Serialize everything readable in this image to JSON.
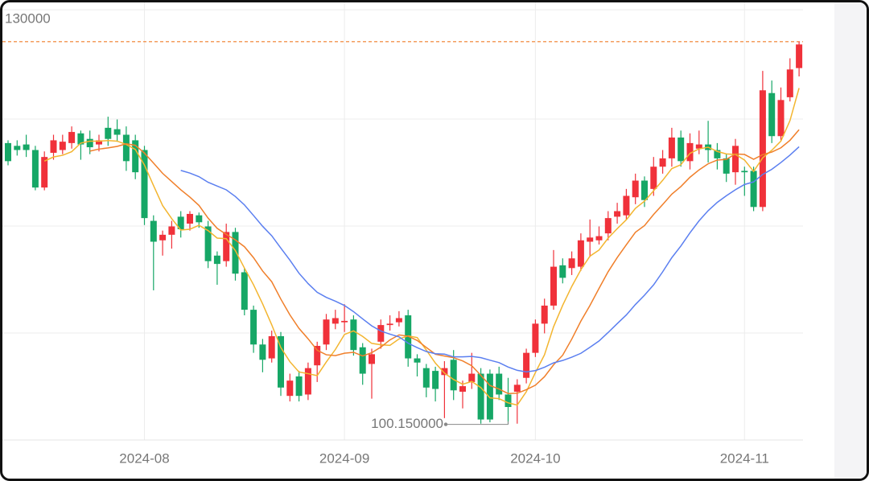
{
  "chart_data": {
    "type": "candlestick",
    "categories": [
      null,
      null,
      null,
      null,
      null,
      null,
      null,
      null,
      null,
      null,
      null,
      null,
      null,
      null,
      null,
      "2024-08",
      null,
      null,
      null,
      null,
      null,
      null,
      null,
      null,
      null,
      null,
      null,
      null,
      null,
      null,
      null,
      null,
      null,
      null,
      null,
      null,
      null,
      "2024-09",
      null,
      null,
      null,
      null,
      null,
      null,
      null,
      null,
      null,
      null,
      null,
      null,
      null,
      null,
      null,
      null,
      null,
      null,
      null,
      null,
      "2024-10",
      null,
      null,
      null,
      null,
      null,
      null,
      null,
      null,
      null,
      null,
      null,
      null,
      null,
      null,
      null,
      null,
      null,
      null,
      null,
      null,
      null,
      null,
      "2024-11",
      null,
      null,
      null,
      null,
      null,
      null
    ],
    "open": [
      120.4,
      120.2,
      120.3,
      119.9,
      117.2,
      119.7,
      119.9,
      120.4,
      121.1,
      120.7,
      120.3,
      121.5,
      121.4,
      121.0,
      120.6,
      119.9,
      114.8,
      113.4,
      113.8,
      115.1,
      114.6,
      115.2,
      114.4,
      112.3,
      111.9,
      114.0,
      111.1,
      108.4,
      105.9,
      104.9,
      106.5,
      102.2,
      103.6,
      102.3,
      104.4,
      105.9,
      107.4,
      107.5,
      107.7,
      105.7,
      104.5,
      106.1,
      107.3,
      107.5,
      108.0,
      104.9,
      104.2,
      104.0,
      103.7,
      104.8,
      102.5,
      103.2,
      103.8,
      103.8,
      103.8,
      102.3,
      102.5,
      103.5,
      105.3,
      107.4,
      108.7,
      111.6,
      111.4,
      111.5,
      113.3,
      113.4,
      113.9,
      115.1,
      115.2,
      116.5,
      117.7,
      117.1,
      118.7,
      119.3,
      120.8,
      119.1,
      120.0,
      120.3,
      119.9,
      119.3,
      118.3,
      118.4,
      118.4,
      115.8,
      124.0,
      120.9,
      123.7,
      125.8
    ],
    "close": [
      119.1,
      119.9,
      119.9,
      117.2,
      119.4,
      120.6,
      120.5,
      121.2,
      120.3,
      120.1,
      120.6,
      120.7,
      121.0,
      119.1,
      118.3,
      115.0,
      113.3,
      113.8,
      114.4,
      114.2,
      115.3,
      114.7,
      111.9,
      111.7,
      114.0,
      111.0,
      108.4,
      105.9,
      104.8,
      106.5,
      102.8,
      103.3,
      102.2,
      104.2,
      105.8,
      107.7,
      107.8,
      107.6,
      105.5,
      103.8,
      105.2,
      107.3,
      107.4,
      107.8,
      104.9,
      104.6,
      102.8,
      102.7,
      104.2,
      102.6,
      102.9,
      103.8,
      100.5,
      100.5,
      102.3,
      101.4,
      103.0,
      105.3,
      107.4,
      108.7,
      111.5,
      110.7,
      112.1,
      113.4,
      113.6,
      113.7,
      115.0,
      115.5,
      116.6,
      117.7,
      116.3,
      118.7,
      119.3,
      120.8,
      119.1,
      120.4,
      120.3,
      119.9,
      119.3,
      118.2,
      120.2,
      118.3,
      115.8,
      124.2,
      120.9,
      123.5,
      125.7,
      127.5
    ],
    "low": [
      118.8,
      119.5,
      119.4,
      117.0,
      117.0,
      119.2,
      119.6,
      120.0,
      119.2,
      119.6,
      119.8,
      120.2,
      120.5,
      118.4,
      117.8,
      114.5,
      109.8,
      112.3,
      112.8,
      113.6,
      114.1,
      114.3,
      111.4,
      110.2,
      111.5,
      110.5,
      108.0,
      105.3,
      103.9,
      104.6,
      102.2,
      101.8,
      101.8,
      101.9,
      103.2,
      105.5,
      107.0,
      106.8,
      105.1,
      103.0,
      102.0,
      105.6,
      106.9,
      107.2,
      104.3,
      103.6,
      102.1,
      101.8,
      100.6,
      101.9,
      101.3,
      102.7,
      100.2,
      100.3,
      101.9,
      100.15,
      100.2,
      103.1,
      105.0,
      106.7,
      108.4,
      110.3,
      110.9,
      111.2,
      112.2,
      113.1,
      113.4,
      114.6,
      114.9,
      116.0,
      115.8,
      116.6,
      118.2,
      118.7,
      118.7,
      118.5,
      119.6,
      119.0,
      118.5,
      117.6,
      117.4,
      116.6,
      115.5,
      115.5,
      120.4,
      120.6,
      123.4,
      125.2
    ],
    "high": [
      120.6,
      120.6,
      121.0,
      120.2,
      119.8,
      121.0,
      121.0,
      121.6,
      121.3,
      121.3,
      121.0,
      122.3,
      122.1,
      121.6,
      121.0,
      120.2,
      115.2,
      114.1,
      114.8,
      115.5,
      115.5,
      115.4,
      114.8,
      112.6,
      114.6,
      114.3,
      111.4,
      108.7,
      106.3,
      106.9,
      106.8,
      103.8,
      104.0,
      104.6,
      106.1,
      108.1,
      108.4,
      108.8,
      108.0,
      106.0,
      105.6,
      107.7,
      108.0,
      108.3,
      108.4,
      105.2,
      104.5,
      104.3,
      104.7,
      105.5,
      103.3,
      105.3,
      104.2,
      104.1,
      104.3,
      103.5,
      103.4,
      105.6,
      107.7,
      109.2,
      112.7,
      112.1,
      112.6,
      113.9,
      114.9,
      114.4,
      115.5,
      116.1,
      117.1,
      118.2,
      118.0,
      119.4,
      119.9,
      121.5,
      121.3,
      121.1,
      121.3,
      122.0,
      120.4,
      119.6,
      120.7,
      118.7,
      118.7,
      125.6,
      124.9,
      124.4,
      126.5,
      127.7
    ],
    "up_color": "#f0313a",
    "down_color": "#16a766",
    "moving_averages": [
      {
        "period": 5,
        "color": "#f3b52f"
      },
      {
        "period": 10,
        "color": "#f07f2a"
      },
      {
        "period": 20,
        "color": "#5b7ff0"
      }
    ],
    "max_line_color": "#f07f2a",
    "min_label": "100.150000",
    "ylim": [
      99.2,
      130.7
    ],
    "yticks": [
      {
        "value": 130,
        "label": "130000"
      }
    ],
    "grid": true
  }
}
